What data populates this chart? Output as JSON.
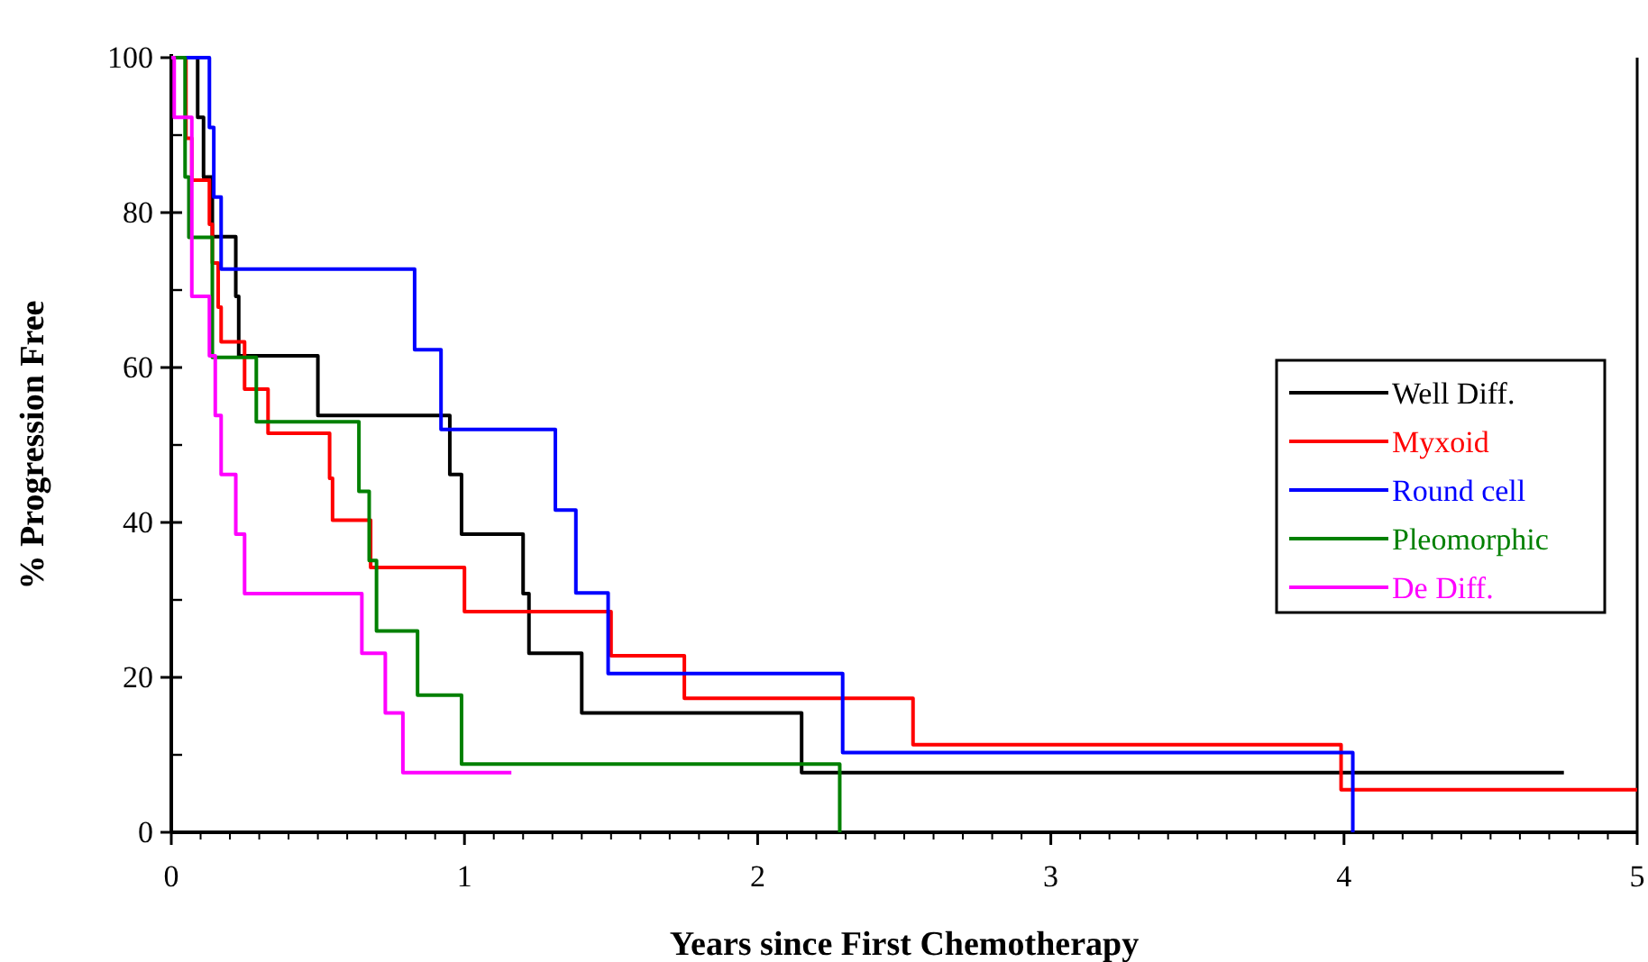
{
  "chart_data": {
    "type": "step",
    "xlabel": "Years since First Chemotherapy",
    "ylabel": "% Progression Free",
    "xlim": [
      0,
      5
    ],
    "ylim": [
      0,
      100
    ],
    "xticks": [
      0,
      1,
      2,
      3,
      4,
      5
    ],
    "yticks": [
      0,
      20,
      40,
      60,
      80,
      100
    ],
    "legend": "right",
    "grid": false,
    "series": [
      {
        "name": "Well Diff.",
        "color": "#000000",
        "x": [
          0,
          0.09,
          0.11,
          0.14,
          0.22,
          0.23,
          0.5,
          0.95,
          0.99,
          1.2,
          1.22,
          1.4,
          2.15,
          4.75
        ],
        "values": [
          100,
          92.3,
          84.6,
          76.9,
          69.2,
          61.5,
          53.8,
          46.2,
          38.5,
          30.8,
          23.1,
          15.4,
          7.7,
          7.7
        ]
      },
      {
        "name": "Myxoid",
        "color": "#ff0000",
        "x": [
          0,
          0.05,
          0.07,
          0.13,
          0.14,
          0.16,
          0.17,
          0.25,
          0.33,
          0.54,
          0.55,
          0.68,
          1.0,
          1.5,
          1.75,
          2.53,
          3.99,
          5.0
        ],
        "values": [
          100,
          89.6,
          84.2,
          78.5,
          73.5,
          67.8,
          63.3,
          57.2,
          51.5,
          45.7,
          40.3,
          34.2,
          28.5,
          22.8,
          17.3,
          11.3,
          5.5,
          5.5
        ]
      },
      {
        "name": "Round cell",
        "color": "#0000ff",
        "x": [
          0,
          0.13,
          0.145,
          0.17,
          0.83,
          0.92,
          1.31,
          1.38,
          1.49,
          2.29,
          4.03
        ],
        "values": [
          100,
          91,
          82,
          72.7,
          62.3,
          52,
          41.6,
          30.9,
          20.5,
          10.3,
          0
        ]
      },
      {
        "name": "Pleomorphic",
        "color": "#008000",
        "x": [
          0,
          0.047,
          0.06,
          0.14,
          0.29,
          0.64,
          0.675,
          0.7,
          0.84,
          0.99,
          2.28
        ],
        "values": [
          100,
          84.6,
          76.8,
          61.3,
          53,
          44,
          35.1,
          26,
          17.7,
          8.8,
          0
        ]
      },
      {
        "name": "De Diff.",
        "color": "#ff00ff",
        "x": [
          0,
          0.01,
          0.07,
          0.13,
          0.15,
          0.17,
          0.22,
          0.25,
          0.65,
          0.73,
          0.79,
          1.16
        ],
        "values": [
          100,
          92.3,
          69.2,
          61.5,
          53.8,
          46.2,
          38.5,
          30.8,
          23.1,
          15.4,
          7.7,
          7.7
        ]
      }
    ]
  }
}
